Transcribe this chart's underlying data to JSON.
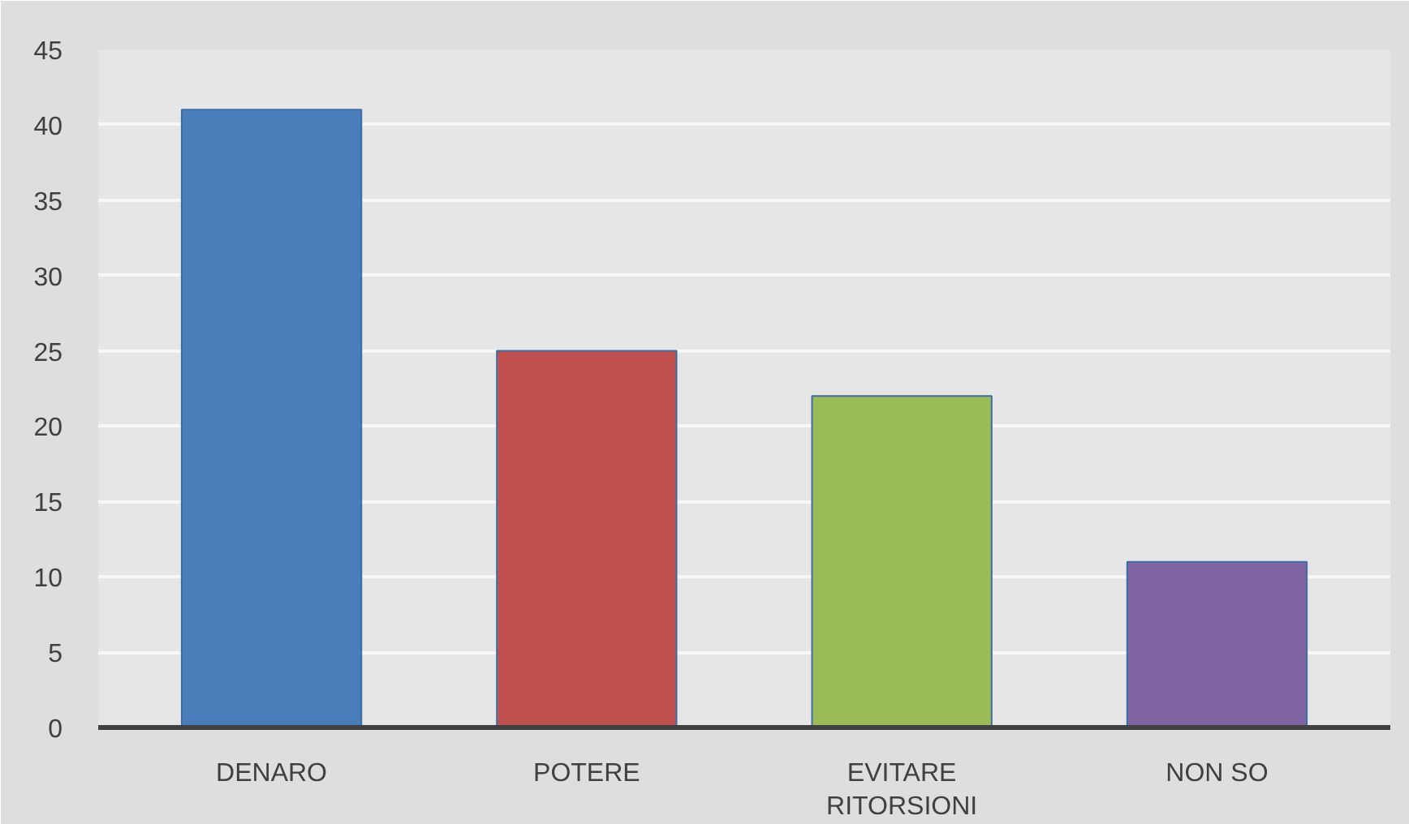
{
  "chart_data": {
    "type": "bar",
    "categories": [
      "DENARO",
      "POTERE",
      "EVITARE RITORSIONI",
      "NON SO"
    ],
    "values": [
      41,
      25,
      22,
      11
    ],
    "colors": [
      "#4a7ebb",
      "#c0504d",
      "#9bbb59",
      "#8064a2"
    ],
    "ylim": [
      0,
      45
    ],
    "yticks": [
      0,
      5,
      10,
      15,
      20,
      25,
      30,
      35,
      40,
      45
    ],
    "grid": "y"
  }
}
